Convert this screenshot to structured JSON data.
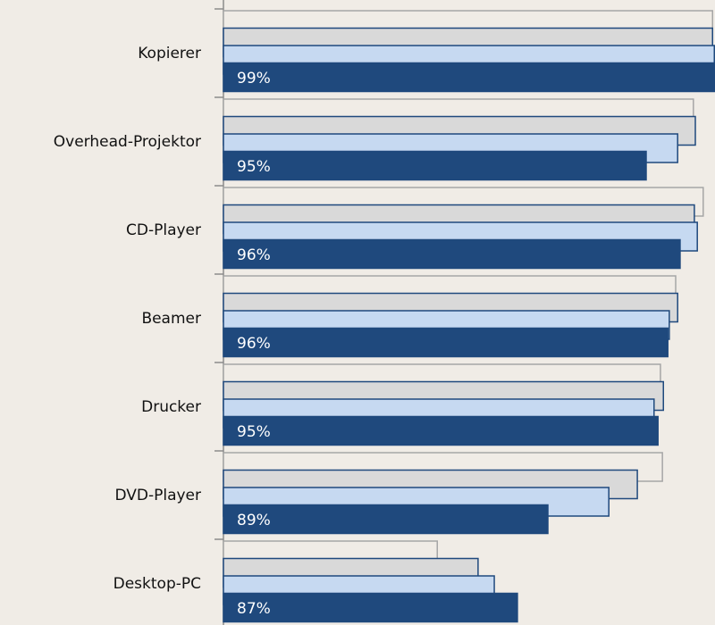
{
  "chart_data": {
    "type": "barh",
    "categories": [
      "Kopierer",
      "Overhead-Projektor",
      "CD-Player",
      "Beamer",
      "Drucker",
      "DVD-Player",
      "Desktop-PC"
    ],
    "annotations": [
      "99%",
      "95%",
      "96%",
      "96%",
      "95%",
      "89%",
      "87%"
    ],
    "xlim": [
      0,
      100
    ],
    "series": [
      {
        "color": "#f0ece6",
        "stroke": "#a6a6a6",
        "values": [
          99.5,
          95.6,
          97.6,
          92,
          88.9,
          89.3,
          43.5
        ]
      },
      {
        "color": "#d9d9d9",
        "stroke": "#1f497d",
        "values": [
          99.5,
          96,
          95.8,
          92.4,
          89.5,
          84.2,
          51.8
        ]
      },
      {
        "color": "#c6d9f1",
        "stroke": "#1f497d",
        "values": [
          100,
          92.4,
          96.4,
          90.7,
          87.6,
          78.4,
          55.1
        ]
      },
      {
        "color": "#1f497d",
        "stroke": "#1f497d",
        "values": [
          100,
          86,
          92.9,
          90.4,
          88.4,
          66,
          59.8
        ]
      }
    ]
  }
}
